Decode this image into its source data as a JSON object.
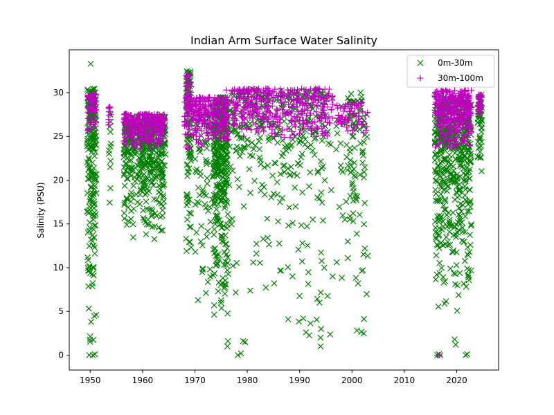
{
  "chart_data": {
    "type": "scatter",
    "title": "Indian Arm Surface Water Salinity",
    "xlabel": "",
    "ylabel": "Salinity (PSU)",
    "xlim": [
      1946,
      2028
    ],
    "ylim": [
      -1.7,
      34.9
    ],
    "xticks": [
      1950,
      1960,
      1970,
      1980,
      1990,
      2000,
      2010,
      2020
    ],
    "yticks": [
      0,
      5,
      10,
      15,
      20,
      25,
      30
    ],
    "legend_position": "top-right",
    "series": [
      {
        "name": "0m-30m",
        "marker": "x",
        "color": "#008000",
        "clusters": [
          {
            "x": [
              1949.4,
              1951.2
            ],
            "y": [
              0,
              30.5
            ],
            "n": 170
          },
          {
            "x": [
              1949.5,
              1951.1
            ],
            "y": [
              22,
              30.2
            ],
            "n": 60
          },
          {
            "x": [
              1953.5,
              1954.0
            ],
            "y": [
              15.6,
              28.0
            ],
            "n": 12
          },
          {
            "x": [
              1956.4,
              1964.4
            ],
            "y": [
              13.0,
              27.5
            ],
            "n": 330
          },
          {
            "x": [
              1956.4,
              1964.4
            ],
            "y": [
              20.5,
              27.0
            ],
            "n": 160
          },
          {
            "x": [
              1968.3,
              1969.3
            ],
            "y": [
              11.0,
              32.5
            ],
            "n": 70
          },
          {
            "x": [
              1968.4,
              1969.2
            ],
            "y": [
              24.0,
              32.5
            ],
            "n": 30
          },
          {
            "x": [
              1970.0,
              1974.0
            ],
            "y": [
              6.0,
              28.0
            ],
            "n": 80
          },
          {
            "x": [
              1973.5,
              1976.3
            ],
            "y": [
              3.5,
              29.5
            ],
            "n": 260
          },
          {
            "x": [
              1973.6,
              1976.2
            ],
            "y": [
              14.0,
              29.0
            ],
            "n": 100
          },
          {
            "x": [
              1976.0,
              2003.0
            ],
            "y": [
              1.0,
              30.5
            ],
            "n": 260
          },
          {
            "x": [
              1976.0,
              1996.0
            ],
            "y": [
              20.0,
              30.3
            ],
            "n": 140
          },
          {
            "x": [
              1999.5,
              2000.8
            ],
            "y": [
              12.9,
              29.2
            ],
            "n": 40
          },
          {
            "x": [
              2002.0,
              2003.0
            ],
            "y": [
              19.0,
              27.5
            ],
            "n": 12
          },
          {
            "x": [
              2015.8,
              2022.8
            ],
            "y": [
              4.5,
              29.5
            ],
            "n": 380
          },
          {
            "x": [
              2015.8,
              2022.8
            ],
            "y": [
              18.0,
              29.0
            ],
            "n": 150
          },
          {
            "x": [
              2024.0,
              2024.8
            ],
            "y": [
              20.5,
              29.8
            ],
            "n": 50
          }
        ],
        "points": [
          {
            "x": 1950.1,
            "y": 33.3
          },
          {
            "x": 1949.8,
            "y": 0.0
          },
          {
            "x": 1950.5,
            "y": 0.0
          },
          {
            "x": 1950.9,
            "y": 0.1
          },
          {
            "x": 1978.2,
            "y": 0.0
          },
          {
            "x": 1978.8,
            "y": 0.2
          },
          {
            "x": 1979.2,
            "y": 1.6
          },
          {
            "x": 1979.6,
            "y": 1.5
          },
          {
            "x": 1976.3,
            "y": 1.6
          },
          {
            "x": 1976.2,
            "y": 1.0
          },
          {
            "x": 1994.0,
            "y": 1.0
          },
          {
            "x": 1994.0,
            "y": 2.0
          },
          {
            "x": 1994.1,
            "y": 3.0
          },
          {
            "x": 1991.2,
            "y": 2.6
          },
          {
            "x": 2016.3,
            "y": 0.0
          },
          {
            "x": 2016.6,
            "y": 0.1
          },
          {
            "x": 2016.9,
            "y": 0.0
          },
          {
            "x": 2021.7,
            "y": 0.0
          },
          {
            "x": 2022.0,
            "y": 0.1
          },
          {
            "x": 2019.6,
            "y": 1.8
          },
          {
            "x": 2019.8,
            "y": 1.2
          },
          {
            "x": 1970.6,
            "y": 6.3
          },
          {
            "x": 1993.8,
            "y": 6.0
          },
          {
            "x": 1999.2,
            "y": 13.0
          },
          {
            "x": 1996.3,
            "y": 9.0
          },
          {
            "x": 1987.8,
            "y": 4.1
          }
        ]
      },
      {
        "name": "30m-100m",
        "marker": "+",
        "color": "#bf00bf",
        "clusters": [
          {
            "x": [
              1949.5,
              1951.2
            ],
            "y": [
              25.5,
              30.0
            ],
            "n": 60
          },
          {
            "x": [
              1953.5,
              1954.0
            ],
            "y": [
              24.5,
              28.3
            ],
            "n": 10
          },
          {
            "x": [
              1956.4,
              1964.3
            ],
            "y": [
              23.5,
              27.6
            ],
            "n": 280
          },
          {
            "x": [
              1968.0,
              1976.4
            ],
            "y": [
              23.5,
              29.5
            ],
            "n": 300
          },
          {
            "x": [
              1968.3,
              1969.3
            ],
            "y": [
              28.0,
              32.2
            ],
            "n": 25
          },
          {
            "x": [
              1977.0,
              1996.5
            ],
            "y": [
              24.5,
              30.5
            ],
            "n": 400
          },
          {
            "x": [
              1997.0,
              2003.0
            ],
            "y": [
              25.0,
              29.0
            ],
            "n": 70
          },
          {
            "x": [
              2015.8,
              2022.8
            ],
            "y": [
              23.0,
              30.3
            ],
            "n": 350
          },
          {
            "x": [
              2024.0,
              2024.8
            ],
            "y": [
              27.0,
              29.8
            ],
            "n": 40
          }
        ],
        "points": [
          {
            "x": 2016.3,
            "y": 0.0
          },
          {
            "x": 2016.7,
            "y": 0.0
          },
          {
            "x": 1953.7,
            "y": 28.4
          },
          {
            "x": 1976.0,
            "y": 30.3
          }
        ]
      }
    ]
  }
}
